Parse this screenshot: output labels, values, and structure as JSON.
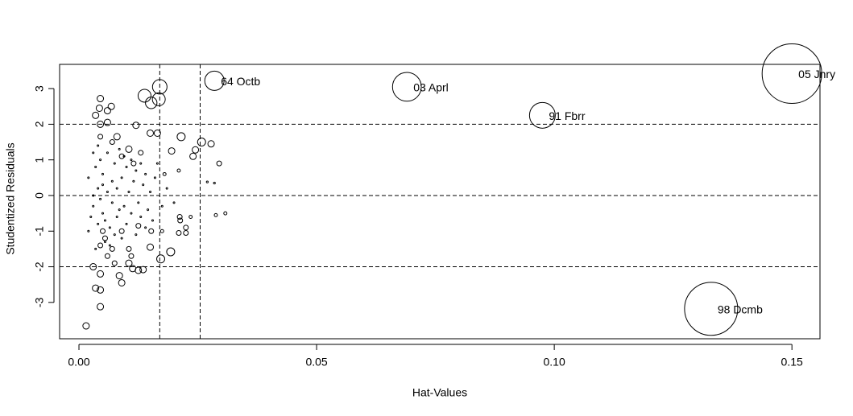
{
  "chart_data": {
    "type": "scatter",
    "xlabel": "Hat-Values",
    "ylabel": "Studentized Residuals",
    "xlim": [
      -0.00407,
      0.1559
    ],
    "ylim": [
      -4.02,
      3.68
    ],
    "xticks": [
      {
        "value": 0,
        "label": "0.00"
      },
      0.05,
      {
        "value": 0.1,
        "label": "0.10"
      },
      0.15
    ],
    "yticks": [
      -3,
      -2,
      -1,
      0,
      1,
      2,
      3
    ],
    "hlines": [
      -2,
      0,
      2
    ],
    "vlines": [
      0.017,
      0.0255
    ],
    "color": "#000000",
    "points": [
      {
        "x": 0.15,
        "y": 3.42,
        "size": 0.214,
        "label": "05 Jnry"
      },
      {
        "x": 0.133,
        "y": -3.18,
        "size": 0.17,
        "label": "98 Dcmb"
      },
      {
        "x": 0.0975,
        "y": 2.25,
        "size": 0.04,
        "label": "91 Fbrr"
      },
      {
        "x": 0.069,
        "y": 3.05,
        "size": 0.05,
        "label": "03 Aprl"
      },
      {
        "x": 0.0285,
        "y": 3.22,
        "size": 0.0225,
        "label": "64 Octb"
      },
      {
        "x": 0.017,
        "y": 3.05,
        "size": 0.0127
      },
      {
        "x": 0.0138,
        "y": 2.8,
        "size": 0.01
      },
      {
        "x": 0.0152,
        "y": 2.6,
        "size": 0.008
      },
      {
        "x": 0.0168,
        "y": 2.7,
        "size": 0.01
      },
      {
        "x": 0.0045,
        "y": 2.72,
        "size": 0.0025
      },
      {
        "x": 0.0043,
        "y": 2.45,
        "size": 0.0025
      },
      {
        "x": 0.0068,
        "y": 2.5,
        "size": 0.0025
      },
      {
        "x": 0.006,
        "y": 2.38,
        "size": 0.0025
      },
      {
        "x": 0.0035,
        "y": 2.25,
        "size": 0.0025
      },
      {
        "x": 0.0045,
        "y": 2.0,
        "size": 0.0025
      },
      {
        "x": 0.006,
        "y": 2.05,
        "size": 0.0025
      },
      {
        "x": 0.012,
        "y": 1.97,
        "size": 0.0025
      },
      {
        "x": 0.0215,
        "y": 1.65,
        "size": 0.0039
      },
      {
        "x": 0.0165,
        "y": 1.75,
        "size": 0.0025
      },
      {
        "x": 0.015,
        "y": 1.75,
        "size": 0.0025
      },
      {
        "x": 0.0258,
        "y": 1.5,
        "size": 0.0039
      },
      {
        "x": 0.0278,
        "y": 1.45,
        "size": 0.0025
      },
      {
        "x": 0.0195,
        "y": 1.25,
        "size": 0.0025
      },
      {
        "x": 0.0245,
        "y": 1.28,
        "size": 0.0025
      },
      {
        "x": 0.024,
        "y": 1.1,
        "size": 0.0025
      },
      {
        "x": 0.0295,
        "y": 0.9,
        "size": 0.0014
      },
      {
        "x": 0.008,
        "y": 1.65,
        "size": 0.0025
      },
      {
        "x": 0.0105,
        "y": 1.3,
        "size": 0.0025
      },
      {
        "x": 0.013,
        "y": 1.2,
        "size": 0.0014
      },
      {
        "x": 0.0045,
        "y": 1.65,
        "size": 0.0014
      },
      {
        "x": 0.007,
        "y": 1.5,
        "size": 0.0014
      },
      {
        "x": 0.009,
        "y": 1.1,
        "size": 0.0014
      },
      {
        "x": 0.0115,
        "y": 0.9,
        "size": 0.0014
      },
      {
        "x": 0.018,
        "y": 0.6,
        "size": 0.0006
      },
      {
        "x": 0.021,
        "y": 0.7,
        "size": 0.0006
      },
      {
        "x": 0.027,
        "y": 0.38,
        "size": 0.0002
      },
      {
        "x": 0.0285,
        "y": 0.35,
        "size": 0.0002
      },
      {
        "x": 0.0308,
        "y": -0.5,
        "size": 0.0006
      },
      {
        "x": 0.0288,
        "y": -0.55,
        "size": 0.0006
      },
      {
        "x": 0.0235,
        "y": -0.6,
        "size": 0.0006
      },
      {
        "x": 0.0212,
        "y": -0.6,
        "size": 0.0014
      },
      {
        "x": 0.0213,
        "y": -0.7,
        "size": 0.0014
      },
      {
        "x": 0.0225,
        "y": -0.9,
        "size": 0.0014
      },
      {
        "x": 0.0225,
        "y": -1.05,
        "size": 0.0014
      },
      {
        "x": 0.021,
        "y": -1.05,
        "size": 0.0014
      },
      {
        "x": 0.0175,
        "y": -1.0,
        "size": 0.0006
      },
      {
        "x": 0.0152,
        "y": -1.0,
        "size": 0.0014
      },
      {
        "x": 0.015,
        "y": -1.45,
        "size": 0.0025
      },
      {
        "x": 0.0172,
        "y": -1.78,
        "size": 0.0039
      },
      {
        "x": 0.0193,
        "y": -1.58,
        "size": 0.0039
      },
      {
        "x": 0.0105,
        "y": -1.9,
        "size": 0.0025
      },
      {
        "x": 0.0125,
        "y": -2.1,
        "size": 0.0025
      },
      {
        "x": 0.0135,
        "y": -2.08,
        "size": 0.0025
      },
      {
        "x": 0.0113,
        "y": -2.05,
        "size": 0.0025
      },
      {
        "x": 0.0085,
        "y": -2.25,
        "size": 0.0025
      },
      {
        "x": 0.009,
        "y": -2.45,
        "size": 0.0025
      },
      {
        "x": 0.0045,
        "y": -2.2,
        "size": 0.0025
      },
      {
        "x": 0.003,
        "y": -2.0,
        "size": 0.0025
      },
      {
        "x": 0.0035,
        "y": -2.6,
        "size": 0.0025
      },
      {
        "x": 0.0045,
        "y": -2.65,
        "size": 0.0025
      },
      {
        "x": 0.0045,
        "y": -3.12,
        "size": 0.0025
      },
      {
        "x": 0.0015,
        "y": -3.66,
        "size": 0.0025
      },
      {
        "x": 0.006,
        "y": -1.7,
        "size": 0.0014
      },
      {
        "x": 0.007,
        "y": -1.5,
        "size": 0.0014
      },
      {
        "x": 0.0105,
        "y": -1.5,
        "size": 0.0014
      },
      {
        "x": 0.011,
        "y": -1.7,
        "size": 0.0014
      },
      {
        "x": 0.0075,
        "y": -1.9,
        "size": 0.0014
      },
      {
        "x": 0.009,
        "y": -1.0,
        "size": 0.0014
      },
      {
        "x": 0.0125,
        "y": -0.85,
        "size": 0.0014
      },
      {
        "x": 0.0055,
        "y": -1.2,
        "size": 0.0014
      },
      {
        "x": 0.005,
        "y": -1.0,
        "size": 0.0014
      },
      {
        "x": 0.0045,
        "y": -1.4,
        "size": 0.0014
      },
      {
        "x": 0.002,
        "y": 0.5,
        "size": 0.00016
      },
      {
        "x": 0.003,
        "y": 1.2,
        "size": 0.00016
      },
      {
        "x": 0.003,
        "y": -0.3,
        "size": 0.00016
      },
      {
        "x": 0.0035,
        "y": 0.8,
        "size": 0.00016
      },
      {
        "x": 0.004,
        "y": -0.8,
        "size": 0.00016
      },
      {
        "x": 0.004,
        "y": 0.2,
        "size": 0.00016
      },
      {
        "x": 0.0045,
        "y": 1.0,
        "size": 0.00016
      },
      {
        "x": 0.005,
        "y": -0.5,
        "size": 0.00016
      },
      {
        "x": 0.005,
        "y": 0.6,
        "size": 0.00016
      },
      {
        "x": 0.0055,
        "y": -1.3,
        "size": 0.00016
      },
      {
        "x": 0.006,
        "y": 0.1,
        "size": 0.00016
      },
      {
        "x": 0.006,
        "y": 1.2,
        "size": 0.00016
      },
      {
        "x": 0.0065,
        "y": -0.9,
        "size": 0.00016
      },
      {
        "x": 0.007,
        "y": 0.4,
        "size": 0.00016
      },
      {
        "x": 0.007,
        "y": -0.2,
        "size": 0.00016
      },
      {
        "x": 0.0075,
        "y": 0.9,
        "size": 0.00016
      },
      {
        "x": 0.008,
        "y": -0.6,
        "size": 0.00016
      },
      {
        "x": 0.008,
        "y": 0.2,
        "size": 0.00016
      },
      {
        "x": 0.0085,
        "y": 1.3,
        "size": 0.00016
      },
      {
        "x": 0.009,
        "y": -1.2,
        "size": 0.00016
      },
      {
        "x": 0.009,
        "y": 0.5,
        "size": 0.00016
      },
      {
        "x": 0.0095,
        "y": -0.3,
        "size": 0.00016
      },
      {
        "x": 0.01,
        "y": 0.8,
        "size": 0.00016
      },
      {
        "x": 0.01,
        "y": -0.8,
        "size": 0.00016
      },
      {
        "x": 0.0105,
        "y": 0.1,
        "size": 0.00016
      },
      {
        "x": 0.011,
        "y": 1.0,
        "size": 0.00016
      },
      {
        "x": 0.011,
        "y": -0.5,
        "size": 0.00016
      },
      {
        "x": 0.0115,
        "y": 0.4,
        "size": 0.00016
      },
      {
        "x": 0.012,
        "y": -1.1,
        "size": 0.00016
      },
      {
        "x": 0.012,
        "y": 0.7,
        "size": 0.00016
      },
      {
        "x": 0.0125,
        "y": -0.2,
        "size": 0.00016
      },
      {
        "x": 0.013,
        "y": 0.9,
        "size": 0.00016
      },
      {
        "x": 0.013,
        "y": -0.6,
        "size": 0.00016
      },
      {
        "x": 0.0135,
        "y": 0.3,
        "size": 0.00016
      },
      {
        "x": 0.014,
        "y": -0.9,
        "size": 0.00016
      },
      {
        "x": 0.014,
        "y": 0.6,
        "size": 0.00016
      },
      {
        "x": 0.0145,
        "y": -0.4,
        "size": 0.00016
      },
      {
        "x": 0.015,
        "y": 0.1,
        "size": 0.00016
      },
      {
        "x": 0.0155,
        "y": -0.7,
        "size": 0.00016
      },
      {
        "x": 0.016,
        "y": 0.5,
        "size": 0.00016
      },
      {
        "x": 0.0165,
        "y": 0.9,
        "size": 0.00016
      },
      {
        "x": 0.0175,
        "y": -0.3,
        "size": 0.00016
      },
      {
        "x": 0.0185,
        "y": 0.2,
        "size": 0.00016
      },
      {
        "x": 0.02,
        "y": -0.2,
        "size": 0.00016
      },
      {
        "x": 0.002,
        "y": -1.0,
        "size": 0.00016
      },
      {
        "x": 0.0025,
        "y": -0.6,
        "size": 0.00016
      },
      {
        "x": 0.003,
        "y": 0.0,
        "size": 0.00016
      },
      {
        "x": 0.0035,
        "y": -1.5,
        "size": 0.00016
      },
      {
        "x": 0.004,
        "y": 1.4,
        "size": 0.00016
      },
      {
        "x": 0.0045,
        "y": -0.1,
        "size": 0.00016
      },
      {
        "x": 0.005,
        "y": 0.3,
        "size": 0.00016
      },
      {
        "x": 0.0055,
        "y": -0.7,
        "size": 0.00016
      },
      {
        "x": 0.0065,
        "y": -1.4,
        "size": 0.00016
      },
      {
        "x": 0.0075,
        "y": -1.1,
        "size": 0.00016
      },
      {
        "x": 0.0085,
        "y": -0.4,
        "size": 0.00016
      },
      {
        "x": 0.0095,
        "y": 1.1,
        "size": 0.00016
      }
    ]
  }
}
